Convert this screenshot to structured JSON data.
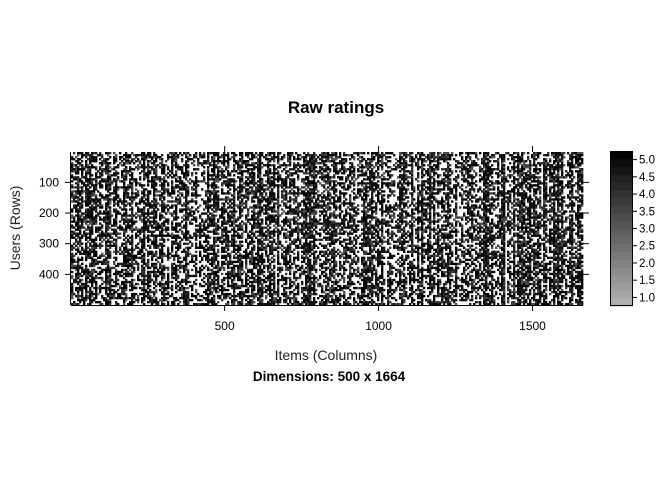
{
  "chart_data": {
    "type": "heatmap",
    "title": "Raw ratings",
    "xlabel": "Items (Columns)",
    "ylabel": "Users (Rows)",
    "subtitle": "Dimensions: 500 x 1664",
    "rows": 500,
    "cols": 1664,
    "xlim": [
      1,
      1664
    ],
    "ylim": [
      1,
      500
    ],
    "y_reversed": true,
    "x_ticks": [
      500,
      1000,
      1500
    ],
    "y_ticks": [
      100,
      200,
      300,
      400
    ],
    "colorkey": {
      "levels": [
        1.0,
        1.5,
        2.0,
        2.5,
        3.0,
        3.5,
        4.0,
        4.5,
        5.0
      ],
      "tick_labels": [
        "1.0",
        "1.5",
        "2.0",
        "2.5",
        "3.0",
        "3.5",
        "4.0",
        "4.5",
        "5.0"
      ],
      "range": [
        0.75,
        5.25
      ],
      "low_color": "#b3b3b3",
      "high_color": "#000000"
    },
    "missing_color": "#ffffff",
    "grid": false,
    "legend": "colorkey-right"
  }
}
